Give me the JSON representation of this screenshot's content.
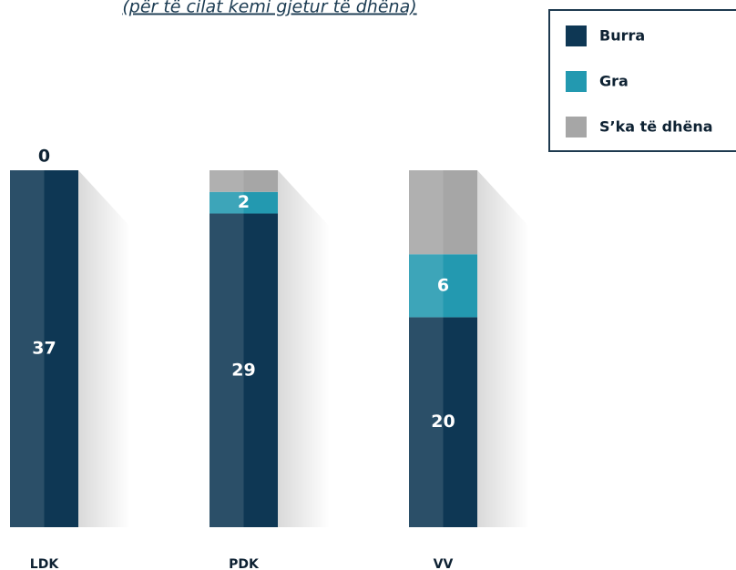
{
  "chart_data": {
    "type": "bar",
    "stacked": "percent",
    "subtitle": "(për të cilat kemi gjetur të dhëna)",
    "categories": [
      "LDK",
      "PDK",
      "VV"
    ],
    "series": [
      {
        "name": "Burra",
        "color": "#0e3754",
        "values": [
          37,
          29,
          20
        ],
        "show_labels": true
      },
      {
        "name": "Gra",
        "color": "#2399b0",
        "values": [
          0,
          2,
          6
        ],
        "show_labels": true
      },
      {
        "name": "S’ka të dhëna",
        "color": "#a6a6a6",
        "values": [
          0,
          2,
          8
        ],
        "show_labels": false
      }
    ],
    "legend": "top-right"
  }
}
